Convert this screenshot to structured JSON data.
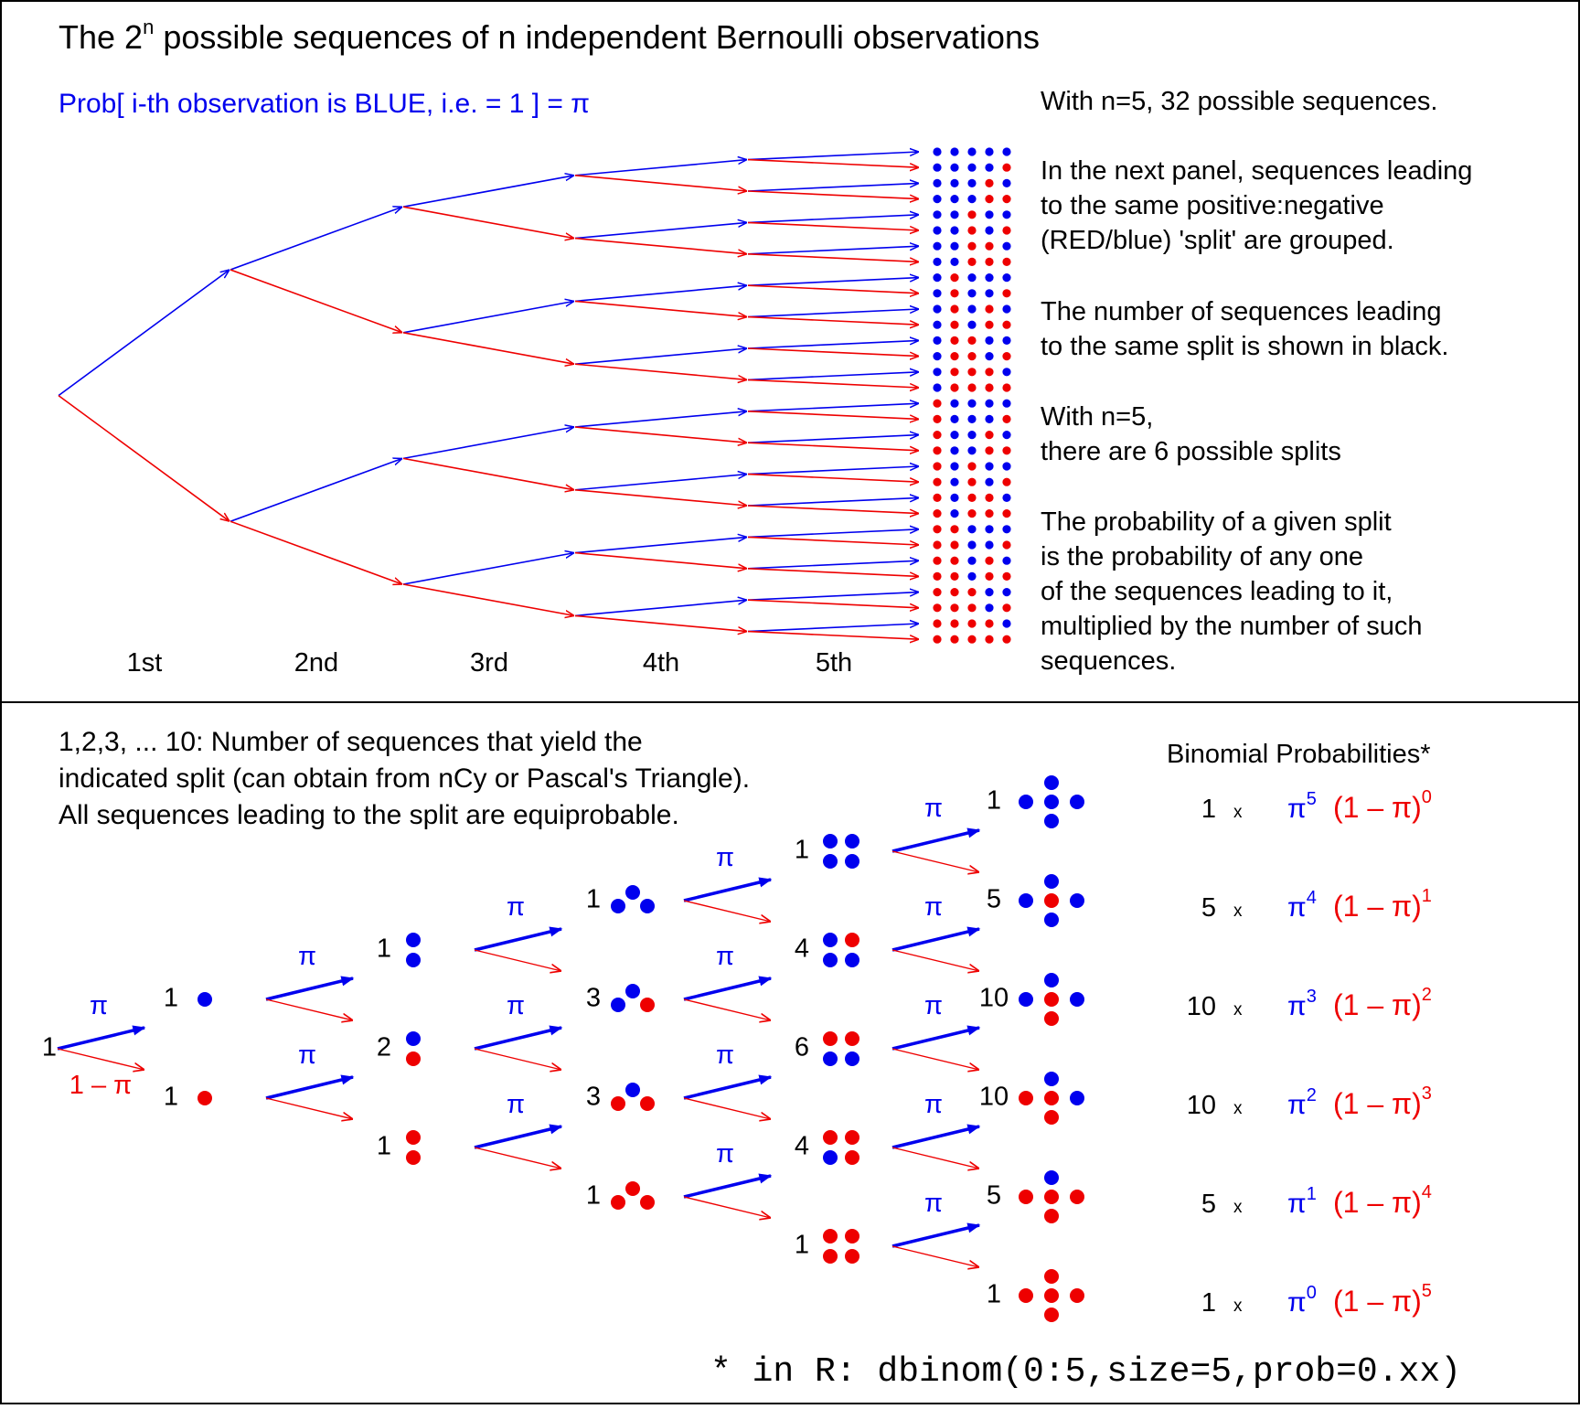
{
  "colors": {
    "blue": "#0000ee",
    "red": "#ee0000",
    "black": "#000000",
    "border": "#000000"
  },
  "top": {
    "title_main": "The 2",
    "title_sup": "n",
    "title_rest": " possible sequences of n independent Bernoulli observations",
    "prob_label": "Prob[ i-th observation is BLUE, i.e. = 1 ] = π",
    "level_labels": [
      "1st",
      "2nd",
      "3rd",
      "4th",
      "5th"
    ],
    "text_blocks": [
      [
        "With n=5, 32 possible sequences."
      ],
      [
        "In the next panel, sequences leading",
        "to the same positive:negative",
        "(RED/blue) 'split' are grouped."
      ],
      [
        "The number of sequences leading",
        "to the same split is shown in black."
      ],
      [
        "With n=5,",
        "there are 6 possible splits"
      ],
      [
        "The probability of a given split",
        "is the probability of any one",
        "of the sequences leading to it,",
        "multiplied by the number of such",
        "sequences."
      ]
    ]
  },
  "bottom": {
    "intro_lines": [
      "1,2,3, ... 10: Number of sequences that yield the",
      "indicated split (can obtain from nCy or Pascal's Triangle).",
      "All sequences leading to the split are equiprobable."
    ],
    "pi": "π",
    "one_minus_pi": "1 – π",
    "root_count": "1",
    "levels": [
      {
        "nodes": [
          {
            "count": "1",
            "red": 0
          },
          {
            "count": "1",
            "red": 1
          }
        ]
      },
      {
        "nodes": [
          {
            "count": "1",
            "red": 0
          },
          {
            "count": "2",
            "red": 1
          },
          {
            "count": "1",
            "red": 2
          }
        ]
      },
      {
        "nodes": [
          {
            "count": "1",
            "red": 0
          },
          {
            "count": "3",
            "red": 1
          },
          {
            "count": "3",
            "red": 2
          },
          {
            "count": "1",
            "red": 3
          }
        ]
      },
      {
        "nodes": [
          {
            "count": "1",
            "red": 0
          },
          {
            "count": "4",
            "red": 1
          },
          {
            "count": "6",
            "red": 2
          },
          {
            "count": "4",
            "red": 3
          },
          {
            "count": "1",
            "red": 4
          }
        ]
      },
      {
        "nodes": [
          {
            "count": "1",
            "red": 0
          },
          {
            "count": "5",
            "red": 1
          },
          {
            "count": "10",
            "red": 2
          },
          {
            "count": "10",
            "red": 3
          },
          {
            "count": "5",
            "red": 4
          },
          {
            "count": "1",
            "red": 5
          }
        ]
      }
    ],
    "binomial_title": "Binomial Probabilities*",
    "binomial_rows": [
      {
        "coef": "1",
        "x": "x",
        "pi": "π",
        "pi_exp": "5",
        "q": "(1 – π)",
        "q_exp": "0"
      },
      {
        "coef": "5",
        "x": "x",
        "pi": "π",
        "pi_exp": "4",
        "q": "(1 – π)",
        "q_exp": "1"
      },
      {
        "coef": "10",
        "x": "x",
        "pi": "π",
        "pi_exp": "3",
        "q": "(1 – π)",
        "q_exp": "2"
      },
      {
        "coef": "10",
        "x": "x",
        "pi": "π",
        "pi_exp": "2",
        "q": "(1 – π)",
        "q_exp": "3"
      },
      {
        "coef": "5",
        "x": "x",
        "pi": "π",
        "pi_exp": "1",
        "q": "(1 – π)",
        "q_exp": "4"
      },
      {
        "coef": "1",
        "x": "x",
        "pi": "π",
        "pi_exp": "0",
        "q": "(1 – π)",
        "q_exp": "5"
      }
    ],
    "footnote": "* in R: dbinom(0:5,size=5,prob=0.xx)"
  }
}
